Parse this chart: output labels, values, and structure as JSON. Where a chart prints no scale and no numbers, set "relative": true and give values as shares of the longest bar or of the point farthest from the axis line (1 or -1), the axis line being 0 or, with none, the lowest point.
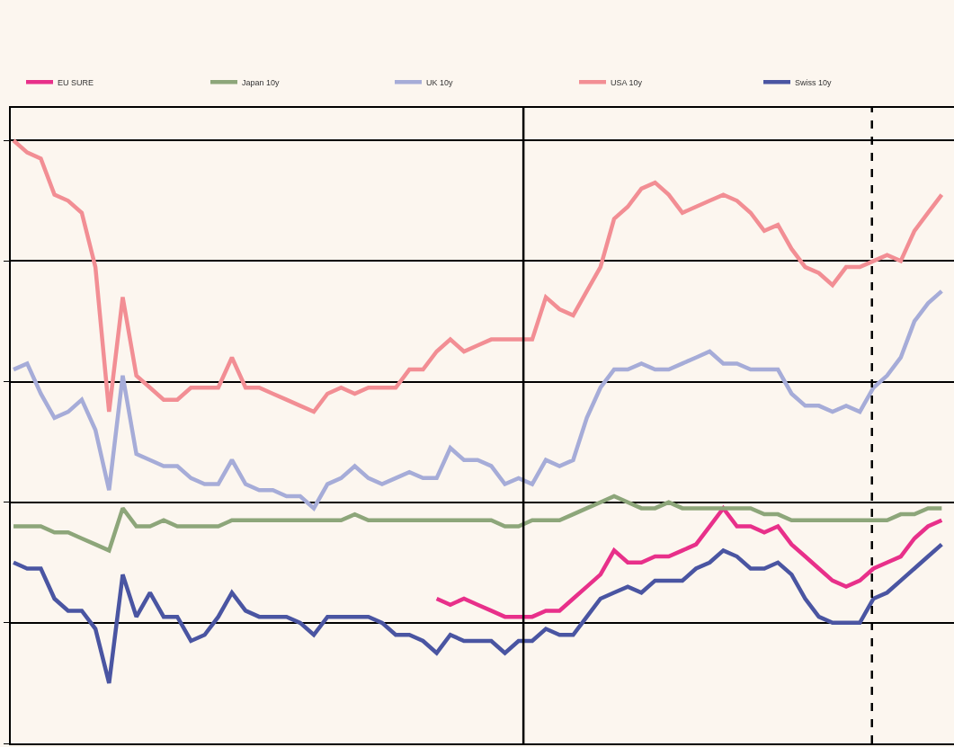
{
  "chart_data": {
    "type": "line",
    "relative": true,
    "grid": true,
    "legend": "top",
    "marker": "none",
    "line_style": "solid",
    "categories": [
      null,
      null,
      null,
      null,
      null,
      null,
      null,
      null,
      null,
      null,
      null,
      null,
      null,
      null,
      null,
      null,
      null,
      null,
      null,
      null,
      null,
      null,
      null,
      null,
      null,
      null,
      null,
      null,
      null,
      null,
      null,
      null,
      null,
      null,
      null,
      null,
      null,
      null,
      null,
      null,
      null,
      null,
      null,
      null,
      null,
      null,
      null,
      null,
      null,
      null,
      null,
      null,
      null,
      null,
      null,
      null,
      null,
      null,
      null,
      null,
      null,
      null,
      null,
      null,
      null,
      null,
      null,
      null,
      null
    ],
    "series": [
      {
        "name": "EU SURE",
        "color": "#e8308a",
        "values": [
          null,
          null,
          null,
          null,
          null,
          null,
          null,
          null,
          null,
          null,
          null,
          null,
          null,
          null,
          null,
          null,
          null,
          null,
          null,
          null,
          null,
          null,
          null,
          null,
          null,
          null,
          null,
          null,
          null,
          null,
          null,
          0.24,
          0.23,
          0.24,
          0.23,
          0.22,
          0.21,
          0.21,
          0.21,
          0.22,
          0.22,
          0.24,
          0.26,
          0.28,
          0.32,
          0.3,
          0.3,
          0.31,
          0.31,
          0.32,
          0.33,
          0.36,
          0.39,
          0.36,
          0.36,
          0.35,
          0.36,
          0.33,
          0.31,
          0.29,
          0.27,
          0.26,
          0.27,
          0.29,
          0.3,
          0.31,
          0.34,
          0.36,
          0.37
        ]
      },
      {
        "name": "Japan 10y",
        "color": "#8da67a",
        "values": [
          0.36,
          0.36,
          0.36,
          0.35,
          0.35,
          0.34,
          0.33,
          0.32,
          0.39,
          0.36,
          0.36,
          0.37,
          0.36,
          0.36,
          0.36,
          0.36,
          0.37,
          0.37,
          0.37,
          0.37,
          0.37,
          0.37,
          0.37,
          0.37,
          0.37,
          0.38,
          0.37,
          0.37,
          0.37,
          0.37,
          0.37,
          0.37,
          0.37,
          0.37,
          0.37,
          0.37,
          0.36,
          0.36,
          0.37,
          0.37,
          0.37,
          0.38,
          0.39,
          0.4,
          0.41,
          0.4,
          0.39,
          0.39,
          0.4,
          0.39,
          0.39,
          0.39,
          0.39,
          0.39,
          0.39,
          0.38,
          0.38,
          0.37,
          0.37,
          0.37,
          0.37,
          0.37,
          0.37,
          0.37,
          0.37,
          0.38,
          0.38,
          0.39,
          0.39
        ]
      },
      {
        "name": "UK 10y",
        "color": "#a6acd8",
        "values": [
          0.62,
          0.63,
          0.58,
          0.54,
          0.55,
          0.57,
          0.52,
          0.42,
          0.61,
          0.48,
          0.47,
          0.46,
          0.46,
          0.44,
          0.43,
          0.43,
          0.47,
          0.43,
          0.42,
          0.42,
          0.41,
          0.41,
          0.39,
          0.43,
          0.44,
          0.46,
          0.44,
          0.43,
          0.44,
          0.45,
          0.44,
          0.44,
          0.49,
          0.47,
          0.47,
          0.46,
          0.43,
          0.44,
          0.43,
          0.47,
          0.46,
          0.47,
          0.54,
          0.59,
          0.62,
          0.62,
          0.63,
          0.62,
          0.62,
          0.63,
          0.64,
          0.65,
          0.63,
          0.63,
          0.62,
          0.62,
          0.62,
          0.58,
          0.56,
          0.56,
          0.55,
          0.56,
          0.55,
          0.59,
          0.61,
          0.64,
          0.7,
          0.73,
          0.75
        ]
      },
      {
        "name": "USA 10y",
        "color": "#f28e94",
        "values": [
          1.0,
          0.98,
          0.97,
          0.91,
          0.9,
          0.88,
          0.79,
          0.55,
          0.74,
          0.61,
          0.59,
          0.57,
          0.57,
          0.59,
          0.59,
          0.59,
          0.64,
          0.59,
          0.59,
          0.58,
          0.57,
          0.56,
          0.55,
          0.58,
          0.59,
          0.58,
          0.59,
          0.59,
          0.59,
          0.62,
          0.62,
          0.65,
          0.67,
          0.65,
          0.66,
          0.67,
          0.67,
          0.67,
          0.67,
          0.74,
          0.72,
          0.71,
          0.75,
          0.79,
          0.87,
          0.89,
          0.92,
          0.93,
          0.91,
          0.88,
          0.89,
          0.9,
          0.91,
          0.9,
          0.88,
          0.85,
          0.86,
          0.82,
          0.79,
          0.78,
          0.76,
          0.79,
          0.79,
          0.8,
          0.81,
          0.8,
          0.85,
          0.88,
          0.91
        ]
      },
      {
        "name": "Swiss 10y",
        "color": "#4a55a2",
        "values": [
          0.3,
          0.29,
          0.29,
          0.24,
          0.22,
          0.22,
          0.19,
          0.1,
          0.28,
          0.21,
          0.25,
          0.21,
          0.21,
          0.17,
          0.18,
          0.21,
          0.25,
          0.22,
          0.21,
          0.21,
          0.21,
          0.2,
          0.18,
          0.21,
          0.21,
          0.21,
          0.21,
          0.2,
          0.18,
          0.18,
          0.17,
          0.15,
          0.18,
          0.17,
          0.17,
          0.17,
          0.15,
          0.17,
          0.17,
          0.19,
          0.18,
          0.18,
          0.21,
          0.24,
          0.25,
          0.26,
          0.25,
          0.27,
          0.27,
          0.27,
          0.29,
          0.3,
          0.32,
          0.31,
          0.29,
          0.29,
          0.3,
          0.28,
          0.24,
          0.21,
          0.2,
          0.2,
          0.2,
          0.24,
          0.25,
          0.27,
          0.29,
          0.31,
          0.33
        ]
      }
    ]
  }
}
